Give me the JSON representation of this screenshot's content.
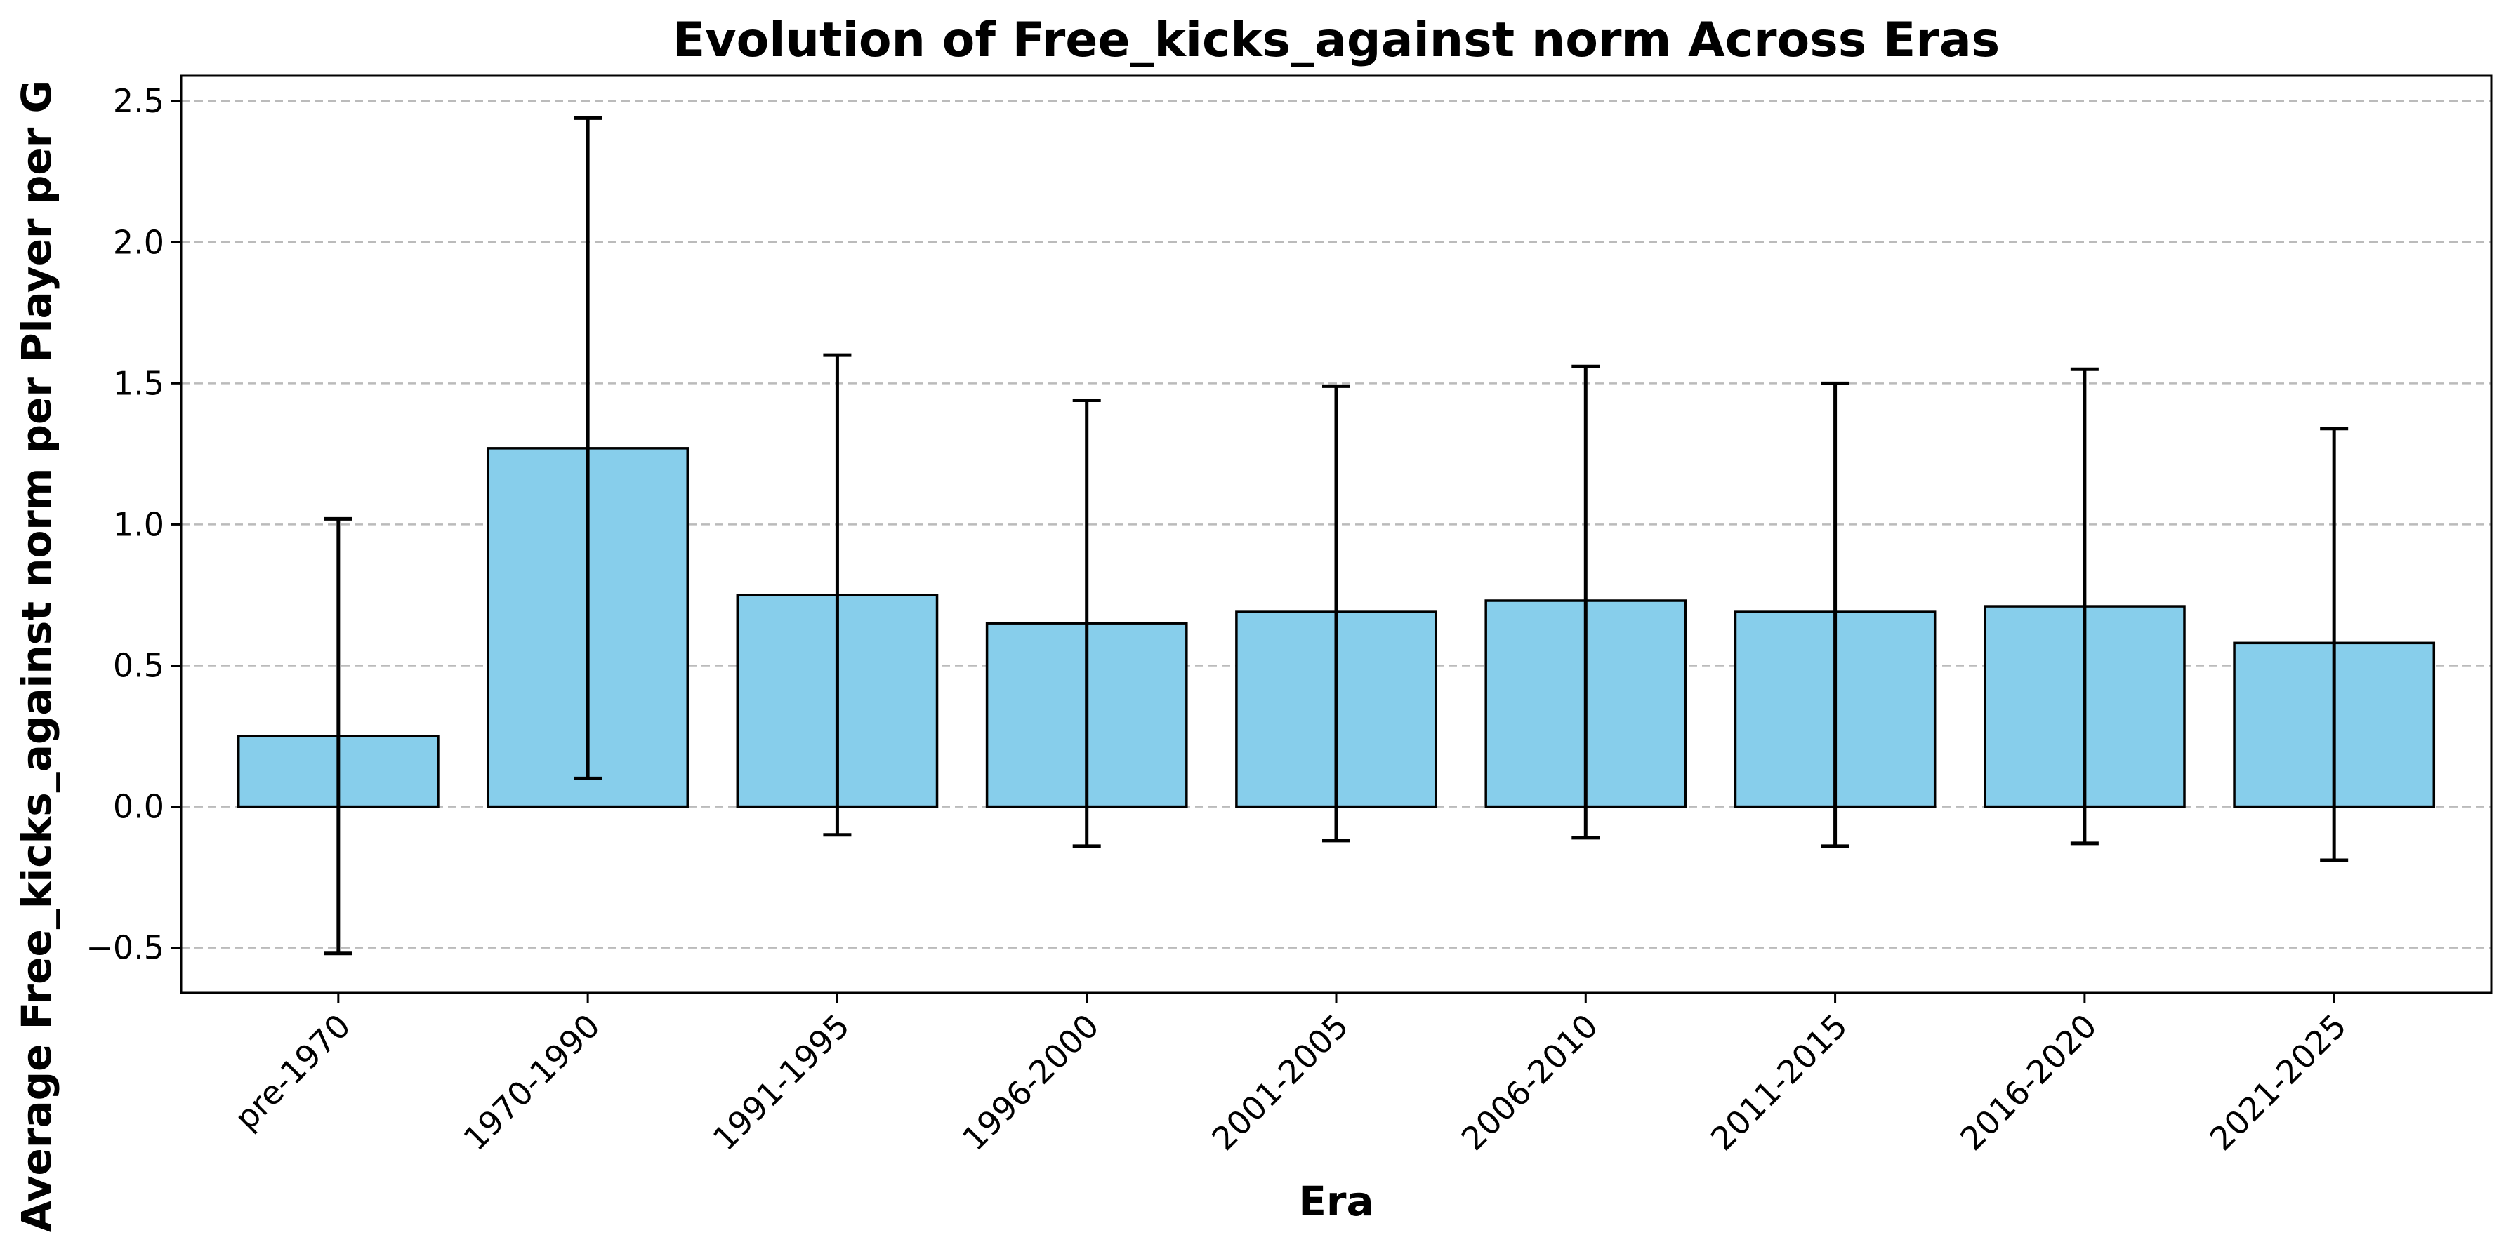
{
  "chart_data": {
    "type": "bar",
    "title": "Evolution of Free_kicks_against norm Across Eras",
    "xlabel": "Era",
    "ylabel": "Average Free_kicks_against norm per Player per G",
    "categories": [
      "pre-1970",
      "1970-1990",
      "1991-1995",
      "1996-2000",
      "2001-2005",
      "2006-2010",
      "2011-2015",
      "2016-2020",
      "2021-2025"
    ],
    "values": [
      0.25,
      1.27,
      0.75,
      0.65,
      0.69,
      0.73,
      0.69,
      0.71,
      0.58
    ],
    "error_low": [
      -0.52,
      0.1,
      -0.1,
      -0.14,
      -0.12,
      -0.11,
      -0.14,
      -0.13,
      -0.19
    ],
    "error_high": [
      1.02,
      2.44,
      1.6,
      1.44,
      1.49,
      1.56,
      1.5,
      1.55,
      1.34
    ],
    "ylim": [
      -0.66,
      2.59
    ],
    "yticks": [
      -0.5,
      0.0,
      0.5,
      1.0,
      1.5,
      2.0,
      2.5
    ],
    "ytick_labels": [
      "−0.5",
      "0.0",
      "0.5",
      "1.0",
      "1.5",
      "2.0",
      "2.5"
    ],
    "grid": "y-dashed",
    "colors": {
      "bar": "#87ceeb",
      "edge": "#000000",
      "grid": "#bbbbbb",
      "error": "#000000"
    }
  }
}
